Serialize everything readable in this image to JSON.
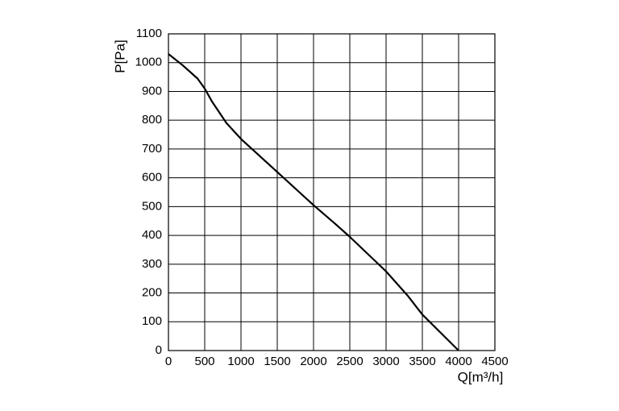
{
  "chart_data": {
    "type": "line",
    "x_label": "Q[m³/h]",
    "y_label": "P[Pa]",
    "x": [
      0,
      200,
      400,
      500,
      600,
      800,
      1000,
      1500,
      2000,
      2300,
      2500,
      3000,
      3300,
      3500,
      4000
    ],
    "values": [
      1030,
      990,
      945,
      910,
      865,
      790,
      735,
      620,
      505,
      440,
      395,
      275,
      190,
      125,
      0
    ],
    "color": "#000000",
    "xlim": [
      0,
      4500
    ],
    "xticks": [
      0,
      500,
      1000,
      1500,
      2000,
      2500,
      3000,
      3500,
      4000,
      4500
    ],
    "ylim": [
      0,
      1100
    ],
    "yticks": [
      0,
      100,
      200,
      300,
      400,
      500,
      600,
      700,
      800,
      900,
      1000,
      1100
    ],
    "grid": true
  }
}
